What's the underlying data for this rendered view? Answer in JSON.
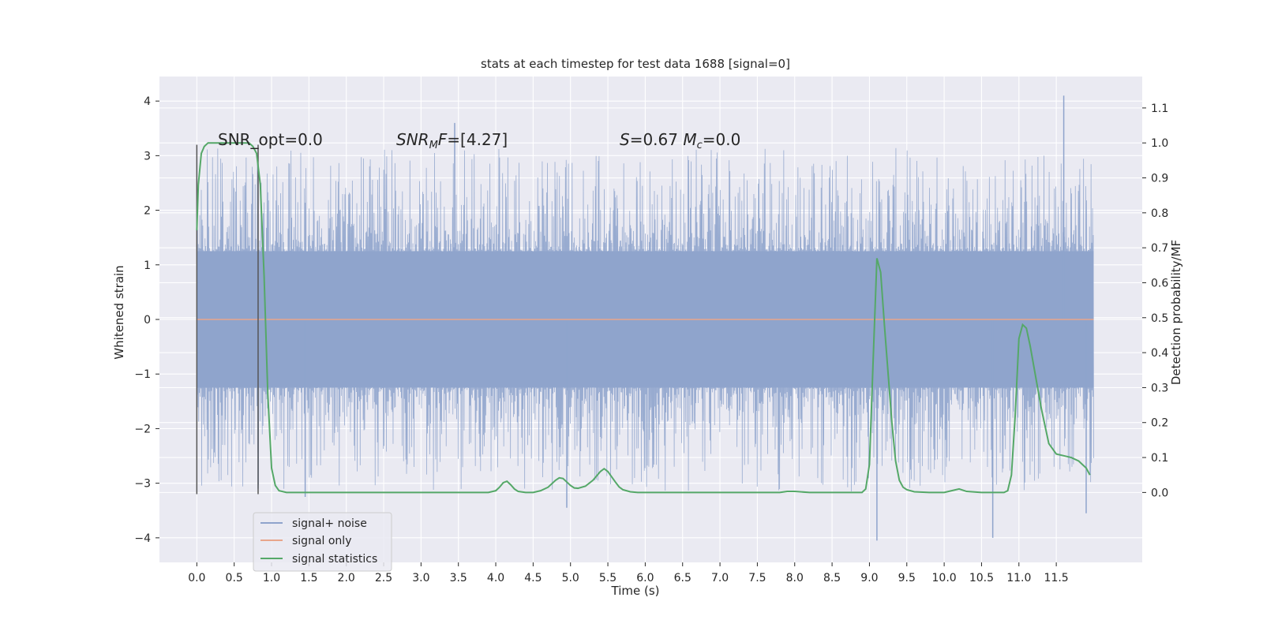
{
  "chart_data": {
    "type": "line",
    "title": "stats at each timestep for test data 1688 [signal=0]",
    "xlabel": "Time (s)",
    "ylabel": "Whitened strain",
    "ylabel_right": "Detection probability/MF",
    "xlim": [
      -0.5,
      12.65
    ],
    "ylim": [
      -4.45,
      4.45
    ],
    "ylim_right": [
      -0.2,
      1.19
    ],
    "x_ticks": [
      0.0,
      0.5,
      1.0,
      1.5,
      2.0,
      2.5,
      3.0,
      3.5,
      4.0,
      4.5,
      5.0,
      5.5,
      6.0,
      6.5,
      7.0,
      7.5,
      8.0,
      8.5,
      9.0,
      9.5,
      10.0,
      10.5,
      11.0,
      11.5
    ],
    "x_tick_labels": [
      "0.0",
      "0.5",
      "1.0",
      "1.5",
      "2.0",
      "2.5",
      "3.0",
      "3.5",
      "4.0",
      "4.5",
      "5.0",
      "5.5",
      "6.0",
      "6.5",
      "7.0",
      "7.5",
      "8.0",
      "8.5",
      "9.0",
      "9.5",
      "10.0",
      "10.5",
      "11.0",
      "11.5"
    ],
    "y_ticks": [
      -4,
      -3,
      -2,
      -1,
      0,
      1,
      2,
      3,
      4
    ],
    "y_tick_labels": [
      "−4",
      "−3",
      "−2",
      "−1",
      "0",
      "1",
      "2",
      "3",
      "4"
    ],
    "y_right_ticks": [
      0.0,
      0.1,
      0.2,
      0.3,
      0.4,
      0.5,
      0.6,
      0.7,
      0.8,
      0.9,
      1.0,
      1.1
    ],
    "y_right_tick_labels": [
      "0.0",
      "0.1",
      "0.2",
      "0.3",
      "0.4",
      "0.5",
      "0.6",
      "0.7",
      "0.8",
      "0.9",
      "1.0",
      "1.1"
    ],
    "grid": true,
    "legend_position": "lower-left",
    "annotations": [
      {
        "text": "SNR_opt=0.0",
        "x": 0.2,
        "y": 3.3
      },
      {
        "text": "SNR_MF=[4.27]",
        "x": 2.6,
        "y": 3.3
      },
      {
        "text": "S=0.67   M_c=0.0",
        "x": 5.6,
        "y": 3.3
      }
    ],
    "vertical_markers": [
      {
        "x": 0.0,
        "y_range": [
          -3.2,
          3.2
        ],
        "color": "#555555"
      },
      {
        "x": 0.82,
        "y_range": [
          -3.2,
          3.2
        ],
        "color": "#555555"
      }
    ],
    "series": [
      {
        "name": "signal+ noise",
        "color": "#8fa4cc",
        "kind": "dense-noise",
        "x_range": [
          0.0,
          12.0
        ],
        "core_band": [
          -1.25,
          1.25
        ],
        "notable_extremes": [
          {
            "x": 0.82,
            "y": -3.1
          },
          {
            "x": 1.45,
            "y": -3.25
          },
          {
            "x": 3.45,
            "y": 3.6
          },
          {
            "x": 4.95,
            "y": -3.45
          },
          {
            "x": 9.1,
            "y": -4.05
          },
          {
            "x": 10.65,
            "y": -4.0
          },
          {
            "x": 11.6,
            "y": 4.1
          },
          {
            "x": 11.9,
            "y": -3.55
          }
        ]
      },
      {
        "name": "signal only",
        "color": "#e8a58b",
        "x": [
          0.0,
          12.0
        ],
        "y": [
          0.0,
          0.0
        ]
      },
      {
        "name": "signal statistics",
        "color": "#55a868",
        "axis": "right",
        "x": [
          0.0,
          0.02,
          0.06,
          0.1,
          0.15,
          0.2,
          0.3,
          0.4,
          0.5,
          0.6,
          0.7,
          0.75,
          0.8,
          0.85,
          0.9,
          0.95,
          1.0,
          1.05,
          1.1,
          1.2,
          1.5,
          2.0,
          2.5,
          3.0,
          3.5,
          3.9,
          4.0,
          4.05,
          4.1,
          4.15,
          4.2,
          4.25,
          4.3,
          4.4,
          4.5,
          4.6,
          4.7,
          4.8,
          4.85,
          4.9,
          4.95,
          5.0,
          5.05,
          5.1,
          5.2,
          5.3,
          5.4,
          5.45,
          5.5,
          5.55,
          5.6,
          5.65,
          5.7,
          5.8,
          5.9,
          6.0,
          6.2,
          6.5,
          7.0,
          7.5,
          7.8,
          7.9,
          8.0,
          8.2,
          8.5,
          8.9,
          8.95,
          9.0,
          9.05,
          9.1,
          9.15,
          9.2,
          9.3,
          9.35,
          9.4,
          9.45,
          9.5,
          9.6,
          9.8,
          10.0,
          10.1,
          10.2,
          10.3,
          10.5,
          10.7,
          10.8,
          10.85,
          10.9,
          10.95,
          11.0,
          11.05,
          11.1,
          11.15,
          11.2,
          11.25,
          11.3,
          11.4,
          11.5,
          11.6,
          11.7,
          11.8,
          11.9,
          11.95
        ],
        "y": [
          0.75,
          0.88,
          0.97,
          0.99,
          1.0,
          1.0,
          1.0,
          1.0,
          1.0,
          1.0,
          1.0,
          0.99,
          0.97,
          0.88,
          0.62,
          0.28,
          0.07,
          0.02,
          0.005,
          0.0,
          0.0,
          0.0,
          0.0,
          0.0,
          0.0,
          0.0,
          0.005,
          0.015,
          0.028,
          0.032,
          0.022,
          0.01,
          0.003,
          0.0,
          0.0,
          0.005,
          0.015,
          0.035,
          0.042,
          0.04,
          0.03,
          0.02,
          0.013,
          0.012,
          0.018,
          0.035,
          0.06,
          0.068,
          0.06,
          0.045,
          0.03,
          0.016,
          0.008,
          0.002,
          0.0,
          0.0,
          0.0,
          0.0,
          0.0,
          0.0,
          0.0,
          0.003,
          0.003,
          0.0,
          0.0,
          0.0,
          0.01,
          0.08,
          0.38,
          0.67,
          0.63,
          0.48,
          0.2,
          0.09,
          0.035,
          0.015,
          0.008,
          0.002,
          0.0,
          0.0,
          0.005,
          0.01,
          0.003,
          0.0,
          0.0,
          0.0,
          0.005,
          0.05,
          0.22,
          0.44,
          0.48,
          0.47,
          0.42,
          0.36,
          0.3,
          0.24,
          0.14,
          0.11,
          0.105,
          0.1,
          0.09,
          0.07,
          0.05
        ]
      }
    ]
  }
}
